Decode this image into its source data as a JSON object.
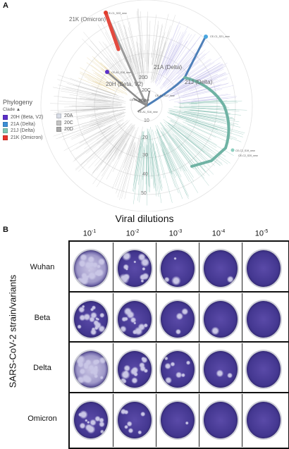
{
  "panel_a": {
    "letter": "A",
    "tree_labels": {
      "omicron": "21K (Omicron)",
      "delta_a": "21A (Delta)",
      "delta_j": "21J (Delta)",
      "beta": "20H (Beta, V2)",
      "clade_20d": "20D",
      "clade_20a": "20A",
      "clade_20c": "20C"
    },
    "tip_labels": [
      "CE-C1_S22_new",
      "CE-C1_S21_new",
      "CE-A1_S18_new",
      "CE-A3_S17_new",
      "CE-A1_S15_new",
      "CE-A1_S16_new",
      "CE-C2_S19_new",
      "CE-C2_S20_new"
    ],
    "radial_ticks": [
      "10",
      "20",
      "30",
      "40",
      "50"
    ],
    "legend": {
      "title": "Phylogeny",
      "subtitle": "Clade",
      "items_left": [
        {
          "label": "20H (Beta, V2)",
          "color": "#5b2fc9"
        },
        {
          "label": "21A (Delta)",
          "color": "#3c8fd6"
        },
        {
          "label": "21J (Delta)",
          "color": "#7fc6b4"
        },
        {
          "label": "21K (Omicron)",
          "color": "#e8332b"
        }
      ],
      "items_right": [
        {
          "label": "20A",
          "color": "#d8dce6"
        },
        {
          "label": "20C",
          "color": "#c4c4c4"
        },
        {
          "label": "20D",
          "color": "#a9a9a9"
        }
      ]
    },
    "colors": {
      "branch_gray": "#b8b8b8",
      "delta_j": "#6fb3a4",
      "delta_a": "#4d7fb8",
      "beta": "#6e48d6",
      "omicron": "#e34a3f"
    }
  },
  "panel_b": {
    "letter": "B",
    "title": "Viral dilutions",
    "y_axis_label": "SARS-CoV-2 strain/variants",
    "dilutions": [
      {
        "base": "10",
        "exp": "-1"
      },
      {
        "base": "10",
        "exp": "-2"
      },
      {
        "base": "10",
        "exp": "-3"
      },
      {
        "base": "10",
        "exp": "-4"
      },
      {
        "base": "10",
        "exp": "-5"
      }
    ],
    "rows": [
      {
        "label": "Wuhan"
      },
      {
        "label": "Beta"
      },
      {
        "label": "Delta"
      },
      {
        "label": "Omicron"
      }
    ],
    "colors": {
      "stain_dark": "#3a2f86",
      "stain_mid": "#5a4aa8",
      "plaque_light": "#c9c6e6"
    }
  }
}
